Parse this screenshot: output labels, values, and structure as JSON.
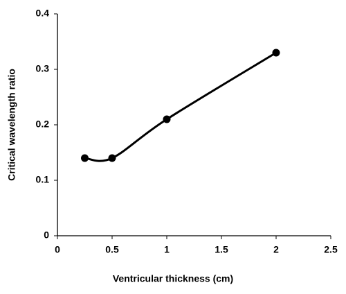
{
  "chart_data": {
    "type": "line",
    "x_label": "Ventricular thickness (cm)",
    "y_label": "Critical wavelength ratio",
    "x": [
      0.25,
      0.5,
      1,
      2
    ],
    "values": [
      0.14,
      0.14,
      0.21,
      0.33
    ],
    "color": "#000000",
    "smooth": true,
    "markers": true,
    "xlim": [
      0,
      2.5
    ],
    "xticks": [
      0,
      0.5,
      1,
      1.5,
      2,
      2.5
    ],
    "ylim": [
      0,
      0.4
    ],
    "yticks": [
      0,
      0.1,
      0.2,
      0.3,
      0.4
    ]
  }
}
